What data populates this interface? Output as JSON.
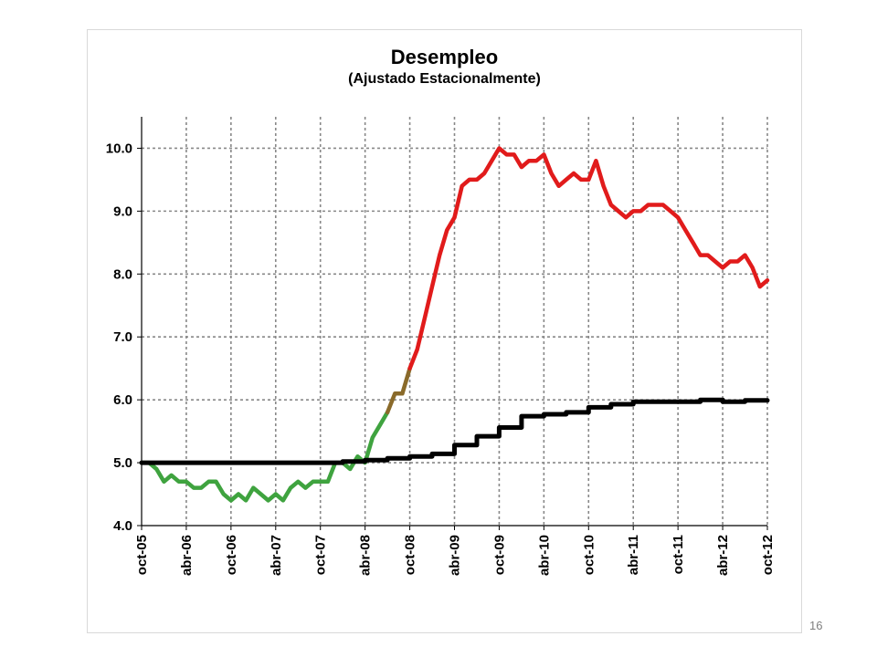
{
  "slide": {
    "page_number": "16"
  },
  "chart_data": {
    "type": "line",
    "title": "Desempleo",
    "subtitle": "(Ajustado Estacionalmente)",
    "xlabel": "",
    "ylabel": "",
    "ylim": [
      4.0,
      10.5
    ],
    "y_ticks": [
      "4.0",
      "5.0",
      "6.0",
      "7.0",
      "8.0",
      "9.0",
      "10.0"
    ],
    "x_ticks": [
      "oct-05",
      "abr-06",
      "oct-06",
      "abr-07",
      "oct-07",
      "abr-08",
      "oct-08",
      "abr-09",
      "oct-09",
      "abr-10",
      "oct-10",
      "abr-11",
      "oct-11",
      "abr-12",
      "oct-12"
    ],
    "x_start": "oct-05",
    "grid": true,
    "legend": "none",
    "colors": {
      "low": "#3fa33f",
      "transition": "#8a6a2a",
      "high": "#e11b1b",
      "natural_rate": "#000000",
      "grid": "#888888"
    },
    "series": [
      {
        "color_key": "low",
        "values": [
          [
            0,
            5.0
          ],
          [
            1,
            5.0
          ],
          [
            2,
            4.9
          ],
          [
            3,
            4.7
          ],
          [
            4,
            4.8
          ],
          [
            5,
            4.7
          ],
          [
            6,
            4.7
          ],
          [
            7,
            4.6
          ],
          [
            8,
            4.6
          ],
          [
            9,
            4.7
          ],
          [
            10,
            4.7
          ],
          [
            11,
            4.5
          ],
          [
            12,
            4.4
          ],
          [
            13,
            4.5
          ],
          [
            14,
            4.4
          ],
          [
            15,
            4.6
          ],
          [
            16,
            4.5
          ],
          [
            17,
            4.4
          ],
          [
            18,
            4.5
          ],
          [
            19,
            4.4
          ],
          [
            20,
            4.6
          ],
          [
            21,
            4.7
          ],
          [
            22,
            4.6
          ],
          [
            23,
            4.7
          ],
          [
            24,
            4.7
          ],
          [
            25,
            4.7
          ],
          [
            26,
            5.0
          ],
          [
            27,
            5.0
          ],
          [
            28,
            4.9
          ],
          [
            29,
            5.1
          ],
          [
            30,
            5.0
          ],
          [
            31,
            5.4
          ],
          [
            32,
            5.6
          ],
          [
            33,
            5.8
          ]
        ]
      },
      {
        "color_key": "transition",
        "values": [
          [
            33,
            5.8
          ],
          [
            34,
            6.1
          ],
          [
            35,
            6.1
          ],
          [
            36,
            6.5
          ]
        ]
      },
      {
        "color_key": "high",
        "values": [
          [
            36,
            6.5
          ],
          [
            37,
            6.8
          ],
          [
            38,
            7.3
          ],
          [
            39,
            7.8
          ],
          [
            40,
            8.3
          ],
          [
            41,
            8.7
          ],
          [
            42,
            8.9
          ],
          [
            43,
            9.4
          ],
          [
            44,
            9.5
          ],
          [
            45,
            9.5
          ],
          [
            46,
            9.6
          ],
          [
            47,
            9.8
          ],
          [
            48,
            10.0
          ],
          [
            49,
            9.9
          ],
          [
            50,
            9.9
          ],
          [
            51,
            9.7
          ],
          [
            52,
            9.8
          ],
          [
            53,
            9.8
          ],
          [
            54,
            9.9
          ],
          [
            55,
            9.6
          ],
          [
            56,
            9.4
          ],
          [
            57,
            9.5
          ],
          [
            58,
            9.6
          ],
          [
            59,
            9.5
          ],
          [
            60,
            9.5
          ],
          [
            61,
            9.8
          ],
          [
            62,
            9.4
          ],
          [
            63,
            9.1
          ],
          [
            64,
            9.0
          ],
          [
            65,
            8.9
          ],
          [
            66,
            9.0
          ],
          [
            67,
            9.0
          ],
          [
            68,
            9.1
          ],
          [
            69,
            9.1
          ],
          [
            70,
            9.1
          ],
          [
            71,
            9.0
          ],
          [
            72,
            8.9
          ],
          [
            73,
            8.7
          ],
          [
            74,
            8.5
          ],
          [
            75,
            8.3
          ],
          [
            76,
            8.3
          ],
          [
            77,
            8.2
          ],
          [
            78,
            8.1
          ],
          [
            79,
            8.2
          ],
          [
            80,
            8.2
          ],
          [
            81,
            8.3
          ],
          [
            82,
            8.1
          ],
          [
            83,
            7.8
          ],
          [
            84,
            7.9
          ]
        ]
      },
      {
        "color_key": "natural_rate",
        "values": [
          [
            0,
            5.0
          ],
          [
            27,
            5.0
          ],
          [
            27,
            5.02
          ],
          [
            30,
            5.02
          ],
          [
            30,
            5.04
          ],
          [
            33,
            5.04
          ],
          [
            33,
            5.07
          ],
          [
            36,
            5.07
          ],
          [
            36,
            5.1
          ],
          [
            39,
            5.1
          ],
          [
            39,
            5.14
          ],
          [
            42,
            5.14
          ],
          [
            42,
            5.28
          ],
          [
            45,
            5.28
          ],
          [
            45,
            5.42
          ],
          [
            48,
            5.42
          ],
          [
            48,
            5.56
          ],
          [
            51,
            5.56
          ],
          [
            51,
            5.74
          ],
          [
            54,
            5.74
          ],
          [
            54,
            5.77
          ],
          [
            57,
            5.77
          ],
          [
            57,
            5.8
          ],
          [
            60,
            5.8
          ],
          [
            60,
            5.88
          ],
          [
            63,
            5.88
          ],
          [
            63,
            5.93
          ],
          [
            66,
            5.93
          ],
          [
            66,
            5.97
          ],
          [
            75,
            5.97
          ],
          [
            75,
            6.0
          ],
          [
            78,
            6.0
          ],
          [
            78,
            5.97
          ],
          [
            81,
            5.97
          ],
          [
            81,
            5.99
          ],
          [
            84,
            5.99
          ]
        ]
      }
    ]
  }
}
